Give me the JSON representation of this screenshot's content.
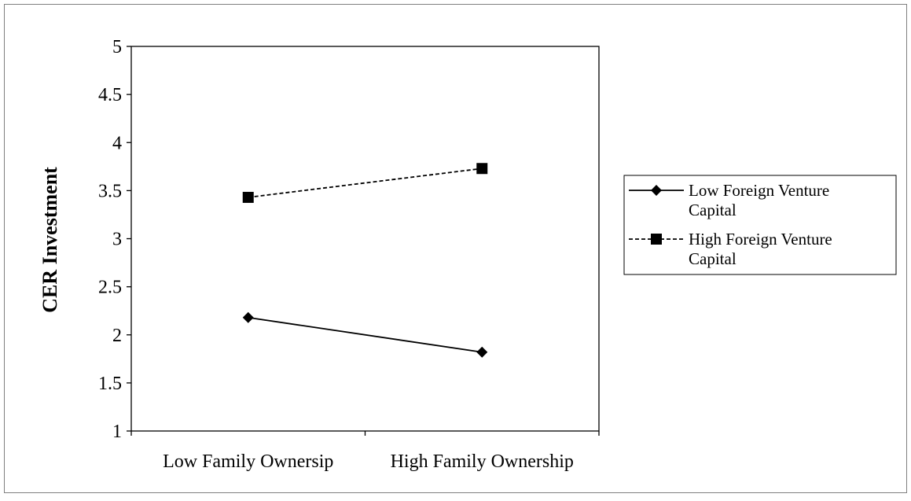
{
  "chart_data": {
    "type": "line",
    "title": "",
    "xlabel": "",
    "ylabel": "CER Investment",
    "categories": [
      "Low Family Ownersip",
      "High Family Ownership"
    ],
    "ylim": [
      1,
      5
    ],
    "yticks": [
      "1",
      "1.5",
      "2",
      "2.5",
      "3",
      "3.5",
      "4",
      "4.5",
      "5"
    ],
    "grid": false,
    "legend_position": "right",
    "series": [
      {
        "name": "Low Foreign Venture Capital",
        "values": [
          2.18,
          1.82
        ],
        "line_style": "solid",
        "marker": "diamond",
        "color": "#000000"
      },
      {
        "name": "High Foreign Venture Capital",
        "values": [
          3.43,
          3.73
        ],
        "line_style": "dashed",
        "marker": "square",
        "color": "#000000"
      }
    ]
  }
}
